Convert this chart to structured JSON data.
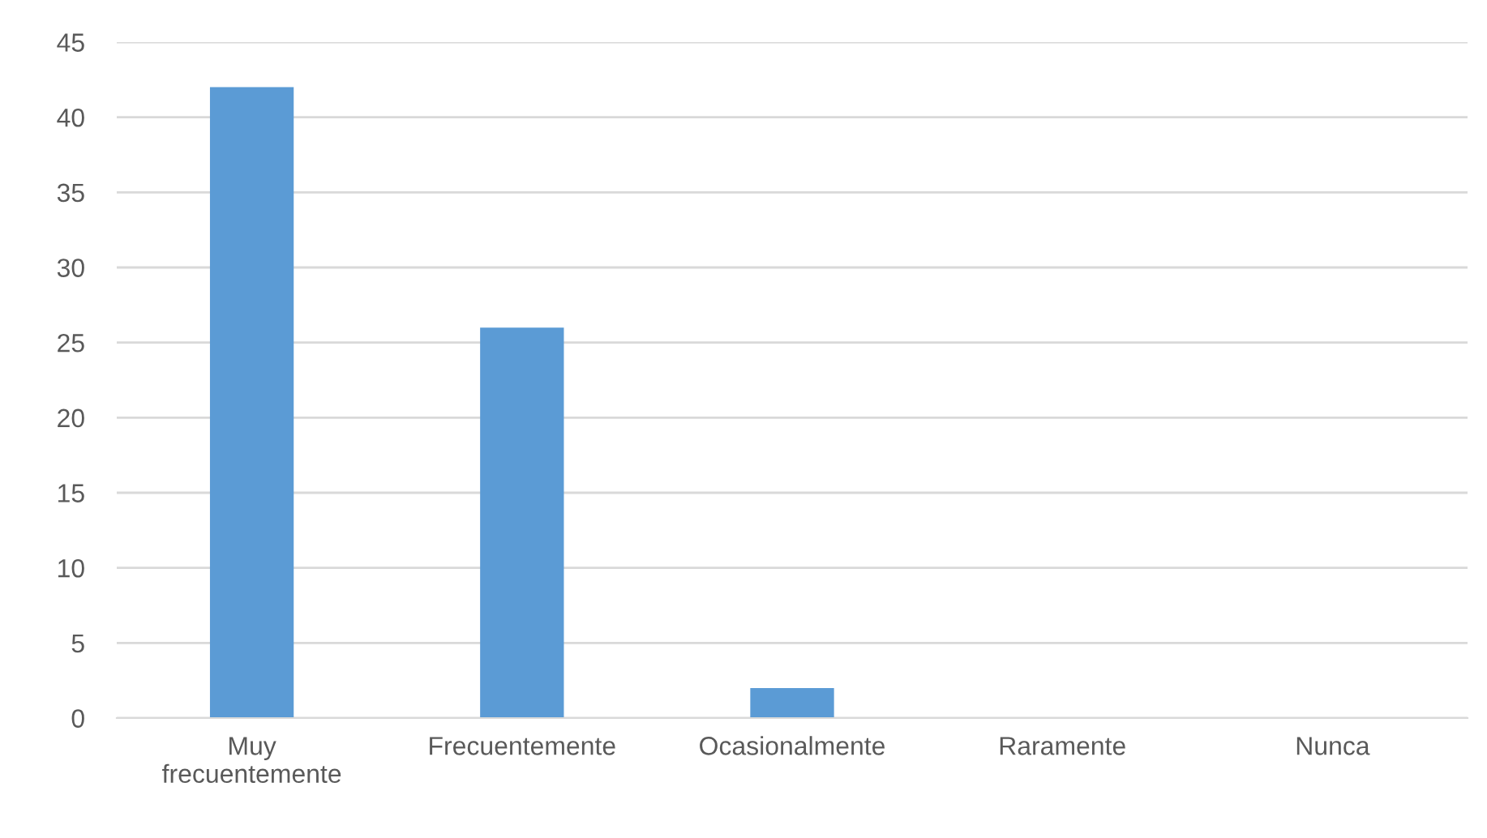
{
  "chart_data": {
    "type": "bar",
    "categories": [
      "Muy frecuentemente",
      "Frecuentemente",
      "Ocasionalmente",
      "Raramente",
      "Nunca"
    ],
    "values": [
      42,
      26,
      2,
      0,
      0
    ],
    "color": "#5b9bd5",
    "ylim": [
      0,
      45
    ],
    "yticks": [
      0,
      5,
      10,
      15,
      20,
      25,
      30,
      35,
      40,
      45
    ],
    "grid": "y"
  }
}
